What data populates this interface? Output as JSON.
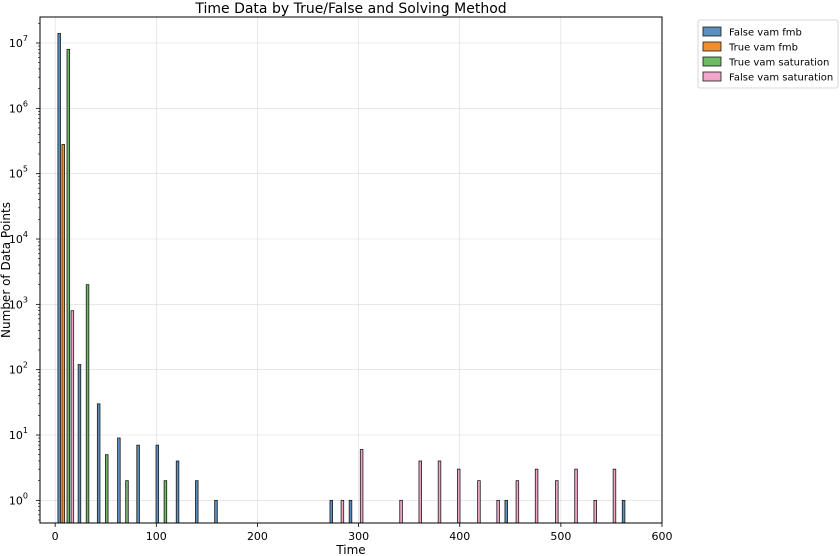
{
  "chart_data": {
    "type": "bar",
    "title": "Time Data by True/False and Solving Method",
    "xlabel": "Time",
    "ylabel": "Number of Data Points",
    "xlim": [
      -15,
      600
    ],
    "ylim": [
      0.45,
      25000000
    ],
    "yscale": "log",
    "grid": true,
    "legend_position": "top-right outside",
    "x_ticks": [
      0,
      100,
      200,
      300,
      400,
      500,
      600
    ],
    "y_ticks": [
      {
        "value": 1,
        "base": "10",
        "exp": "0"
      },
      {
        "value": 10,
        "base": "10",
        "exp": "1"
      },
      {
        "value": 100,
        "base": "10",
        "exp": "2"
      },
      {
        "value": 1000,
        "base": "10",
        "exp": "3"
      },
      {
        "value": 10000,
        "base": "10",
        "exp": "4"
      },
      {
        "value": 100000,
        "base": "10",
        "exp": "5"
      },
      {
        "value": 1000000,
        "base": "10",
        "exp": "6"
      },
      {
        "value": 10000000,
        "base": "10",
        "exp": "7"
      }
    ],
    "bar_width": 2.6,
    "series": [
      {
        "name": "False vam fmb",
        "color": "#5b8fbf",
        "points": [
          {
            "x": 4,
            "y": 14000000
          },
          {
            "x": 24,
            "y": 120
          },
          {
            "x": 43,
            "y": 30
          },
          {
            "x": 63,
            "y": 9
          },
          {
            "x": 82,
            "y": 7
          },
          {
            "x": 101,
            "y": 7
          },
          {
            "x": 121,
            "y": 4
          },
          {
            "x": 140,
            "y": 2
          },
          {
            "x": 159,
            "y": 1
          },
          {
            "x": 273,
            "y": 1
          },
          {
            "x": 292,
            "y": 1
          },
          {
            "x": 446,
            "y": 1
          },
          {
            "x": 562,
            "y": 1
          }
        ]
      },
      {
        "name": "True vam fmb",
        "color": "#f28e2b",
        "points": [
          {
            "x": 8,
            "y": 280000
          }
        ]
      },
      {
        "name": "True vam saturation",
        "color": "#6dbb63",
        "points": [
          {
            "x": 13,
            "y": 8000000
          },
          {
            "x": 32,
            "y": 2000
          },
          {
            "x": 51,
            "y": 5
          },
          {
            "x": 71,
            "y": 2
          },
          {
            "x": 109,
            "y": 2
          }
        ]
      },
      {
        "name": "False vam saturation",
        "color": "#f0a5c9",
        "points": [
          {
            "x": 17,
            "y": 800
          },
          {
            "x": 284,
            "y": 1
          },
          {
            "x": 303,
            "y": 6
          },
          {
            "x": 342,
            "y": 1
          },
          {
            "x": 361,
            "y": 4
          },
          {
            "x": 380,
            "y": 4
          },
          {
            "x": 399,
            "y": 3
          },
          {
            "x": 419,
            "y": 2
          },
          {
            "x": 438,
            "y": 1
          },
          {
            "x": 457,
            "y": 2
          },
          {
            "x": 476,
            "y": 3
          },
          {
            "x": 496,
            "y": 2
          },
          {
            "x": 515,
            "y": 3
          },
          {
            "x": 534,
            "y": 1
          },
          {
            "x": 553,
            "y": 3
          }
        ]
      }
    ]
  }
}
